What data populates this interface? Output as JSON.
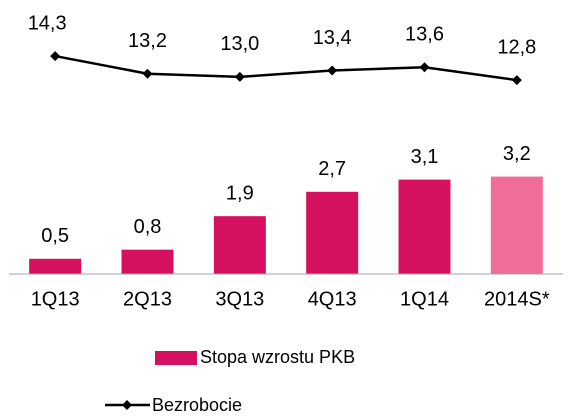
{
  "chart_data": {
    "type": "bar-line",
    "categories": [
      "1Q13",
      "2Q13",
      "3Q13",
      "4Q13",
      "1Q14",
      "2014S*"
    ],
    "series": [
      {
        "name": "Stopa wzrostu PKB",
        "type": "bar",
        "color": "#d5115f",
        "colors": [
          "#d5115f",
          "#d5115f",
          "#d5115f",
          "#d5115f",
          "#d5115f",
          "#f06c9b"
        ],
        "values": [
          0.5,
          0.8,
          1.9,
          2.7,
          3.1,
          3.2
        ],
        "value_labels": [
          "0,5",
          "0,8",
          "1,9",
          "2,7",
          "3,1",
          "3,2"
        ]
      },
      {
        "name": "Bezrobocie",
        "type": "line",
        "axis": "y2",
        "color": "#000000",
        "values": [
          14.3,
          13.2,
          13.0,
          13.4,
          13.6,
          12.8
        ],
        "value_labels": [
          "14,3",
          "13,2",
          "13,0",
          "13,4",
          "13,6",
          "12,8"
        ]
      }
    ],
    "ylim": [
      0,
      9
    ],
    "y2lim": [
      0.7,
      17.8
    ]
  }
}
